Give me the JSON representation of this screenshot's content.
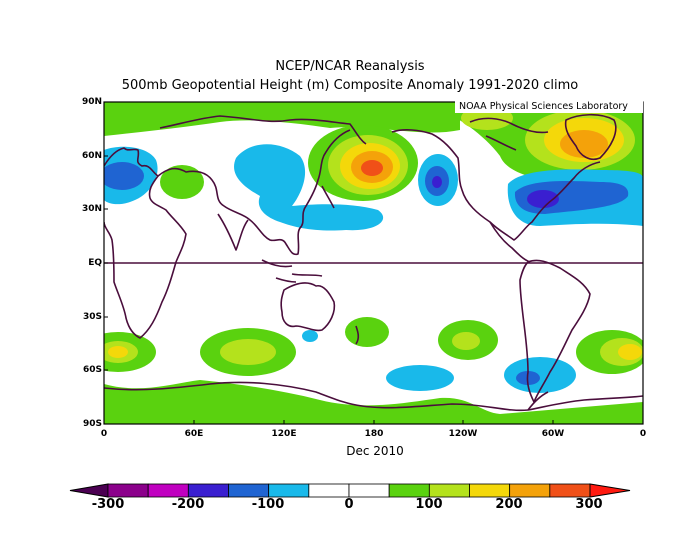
{
  "title_line1": "NCEP/NCAR Reanalysis",
  "title_line2": "500mb Geopotential Height (m) Composite Anomaly 1991-2020 climo",
  "credit": "NOAA Physical Sciences Laboratory",
  "period": "Dec 2010",
  "lat_ticks": [
    "90N",
    "60N",
    "30N",
    "EQ",
    "30S",
    "60S",
    "90S"
  ],
  "lon_ticks": [
    "0",
    "60E",
    "120E",
    "180",
    "120W",
    "60W",
    "0"
  ],
  "colorbar": {
    "labels": [
      "-300",
      "-200",
      "-100",
      "0",
      "100",
      "200",
      "300"
    ],
    "colors": [
      "#8b008b",
      "#c000c0",
      "#3a1fd0",
      "#1f64d2",
      "#19b9ea",
      "#ffffff",
      "#ffffff",
      "#5ad20f",
      "#b4e21c",
      "#f4d80a",
      "#f4a20a",
      "#f05018"
    ]
  },
  "anomaly_color_scale": {
    "strong_negative": "#3a1fd0",
    "negative": "#1f64d2",
    "weak_negative": "#19b9ea",
    "weak_positive": "#5ad20f",
    "positive": "#b4e21c",
    "moderate_positive": "#f4d80a",
    "strong_positive": "#f4a20a",
    "very_strong_positive": "#f05018"
  },
  "features": [
    "Positive anomaly centered near 180 at 55N",
    "Positive anomaly over eastern Canada / Greenland",
    "Negative anomaly over eastern North Pacific near 45N",
    "Negative anomaly over western Atlantic near 35N",
    "Negative anomaly over Siberia / Mongolia",
    "Positive anomalies along Southern Hemisphere midlatitudes"
  ]
}
